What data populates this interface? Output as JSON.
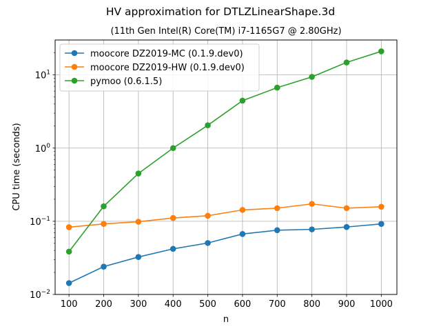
{
  "chart_data": {
    "type": "line",
    "title": "HV approximation for DTLZLinearShape.3d",
    "subtitle": "(11th Gen Intel(R) Core(TM) i7-1165G7 @ 2.80GHz)",
    "xlabel": "n",
    "ylabel": "CPU time (seconds)",
    "yscale": "log",
    "xlim": [
      60,
      1045
    ],
    "ylim": [
      0.01,
      30
    ],
    "x": [
      100,
      200,
      300,
      400,
      500,
      600,
      700,
      800,
      900,
      1000
    ],
    "x_ticks": [
      "100",
      "200",
      "300",
      "400",
      "500",
      "600",
      "700",
      "800",
      "900",
      "1000"
    ],
    "y_ticks": [
      {
        "base": "10",
        "exp": "−2",
        "value": 0.01
      },
      {
        "base": "10",
        "exp": "−1",
        "value": 0.1
      },
      {
        "base": "10",
        "exp": "0",
        "value": 1
      },
      {
        "base": "10",
        "exp": "1",
        "value": 10
      }
    ],
    "grid": true,
    "legend_position": "top-left",
    "series": [
      {
        "name": "moocore DZ2019-MC (0.1.9.dev0)",
        "color": "#1f77b4",
        "values": [
          0.0143,
          0.024,
          0.0325,
          0.042,
          0.0505,
          0.067,
          0.0755,
          0.0775,
          0.0835,
          0.092
        ]
      },
      {
        "name": "moocore DZ2019-HW (0.1.9.dev0)",
        "color": "#ff7f0e",
        "values": [
          0.083,
          0.092,
          0.0985,
          0.111,
          0.119,
          0.143,
          0.151,
          0.173,
          0.151,
          0.158
        ]
      },
      {
        "name": "pymoo (0.6.1.5)",
        "color": "#2ca02c",
        "values": [
          0.0385,
          0.16,
          0.45,
          1.0,
          2.05,
          4.45,
          6.7,
          9.4,
          14.8,
          21.0
        ]
      }
    ]
  }
}
